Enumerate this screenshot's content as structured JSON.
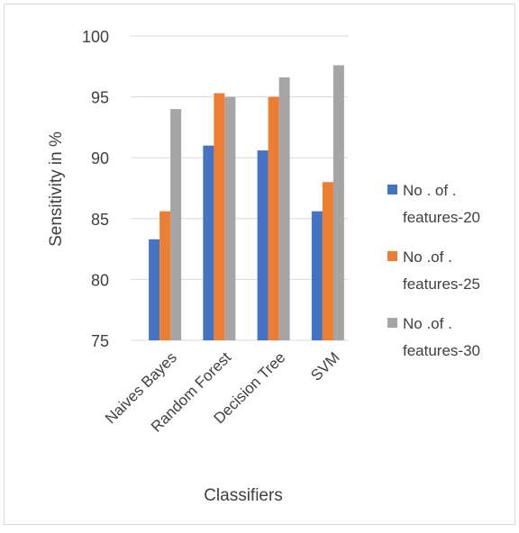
{
  "chart_data": {
    "type": "bar",
    "title": "",
    "xlabel": "Classifiers",
    "ylabel": "Sensitivity in %",
    "categories": [
      "Naives Bayes",
      "Random Forest",
      "Decision Tree",
      "SVM"
    ],
    "ylim": [
      75,
      100
    ],
    "yticks": [
      75,
      80,
      85,
      90,
      95,
      100
    ],
    "grid": true,
    "legend_position": "right",
    "series": [
      {
        "name_lines": [
          "No . of .",
          "features-20"
        ],
        "color": "#4472C4",
        "values": [
          83.3,
          91.0,
          90.6,
          85.6
        ]
      },
      {
        "name_lines": [
          "No .of  .",
          "features-25"
        ],
        "color": "#ED7D31",
        "values": [
          85.6,
          95.3,
          95.0,
          88.0
        ]
      },
      {
        "name_lines": [
          "No .of  .",
          "features-30"
        ],
        "color": "#A5A5A5",
        "values": [
          94.0,
          95.0,
          96.6,
          97.6
        ]
      }
    ]
  }
}
